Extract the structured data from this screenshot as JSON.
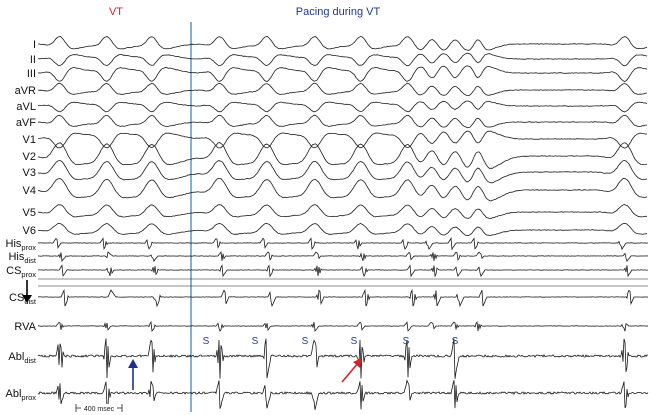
{
  "headers": {
    "left": {
      "text": "VT",
      "color": "#d3262a"
    },
    "right": {
      "text": "Pacing during VT",
      "color": "#1f3a8a"
    }
  },
  "colors": {
    "divider": "#3a78b0",
    "trace": "#1a1a1a",
    "blue_arrow": "#1f2f8c",
    "red_arrow": "#d3262a",
    "pacing_label": "#1f3a8a"
  },
  "leads": [
    {
      "id": "I",
      "main": "I",
      "sub": ""
    },
    {
      "id": "II",
      "main": "II",
      "sub": ""
    },
    {
      "id": "III",
      "main": "III",
      "sub": ""
    },
    {
      "id": "aVR",
      "main": "aVR",
      "sub": ""
    },
    {
      "id": "aVL",
      "main": "aVL",
      "sub": ""
    },
    {
      "id": "aVF",
      "main": "aVF",
      "sub": ""
    },
    {
      "id": "V1",
      "main": "V1",
      "sub": ""
    },
    {
      "id": "V2",
      "main": "V2",
      "sub": ""
    },
    {
      "id": "V3",
      "main": "V3",
      "sub": ""
    },
    {
      "id": "V4",
      "main": "V4",
      "sub": ""
    },
    {
      "id": "V5",
      "main": "V5",
      "sub": ""
    },
    {
      "id": "V6",
      "main": "V6",
      "sub": ""
    },
    {
      "id": "His_prox",
      "main": "His",
      "sub": "prox"
    },
    {
      "id": "His_dist",
      "main": "His",
      "sub": "dist"
    },
    {
      "id": "CS_prox",
      "main": "CS",
      "sub": "prox"
    },
    {
      "id": "CS_dist",
      "main": "CS",
      "sub": "dist"
    },
    {
      "id": "RVA",
      "main": "RVA",
      "sub": ""
    },
    {
      "id": "Abl_dist",
      "main": "Abl",
      "sub": "dist"
    },
    {
      "id": "Abl_prox",
      "main": "Abl",
      "sub": "prox"
    }
  ],
  "stim_marker": "S",
  "stim_count": 6,
  "scale_bar": "400 msec",
  "icons": {
    "cs_arrow": "down-arrow-icon",
    "blue_arrow": "up-arrow-icon",
    "red_arrow": "diagonal-arrow-icon"
  }
}
